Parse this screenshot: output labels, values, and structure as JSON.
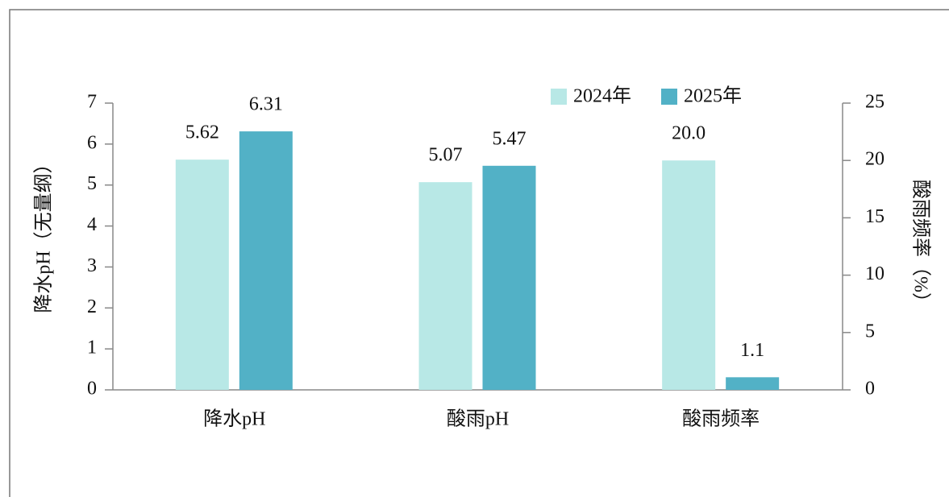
{
  "chart_data": {
    "type": "bar",
    "categories": [
      "降水pH",
      "酸雨pH",
      "酸雨频率"
    ],
    "category_axes": [
      "y",
      "y",
      "y2"
    ],
    "series": [
      {
        "name": "2024年",
        "color": "#b8e8e6",
        "values": [
          5.62,
          5.07,
          20.0
        ],
        "value_labels": [
          "5.62",
          "5.07",
          "20.0"
        ]
      },
      {
        "name": "2025年",
        "color": "#52b1c6",
        "values": [
          6.31,
          5.47,
          1.1
        ],
        "value_labels": [
          "6.31",
          "5.47",
          "1.1"
        ]
      }
    ],
    "ylabel": "降水pH（无量纲）",
    "y2label": "酸雨频率（%）",
    "ylim": [
      0,
      7
    ],
    "yticks": [
      0,
      1,
      2,
      3,
      4,
      5,
      6,
      7
    ],
    "y2lim": [
      0,
      25
    ],
    "y2ticks": [
      0,
      5,
      10,
      15,
      20,
      25
    ],
    "legend": "top-right"
  }
}
